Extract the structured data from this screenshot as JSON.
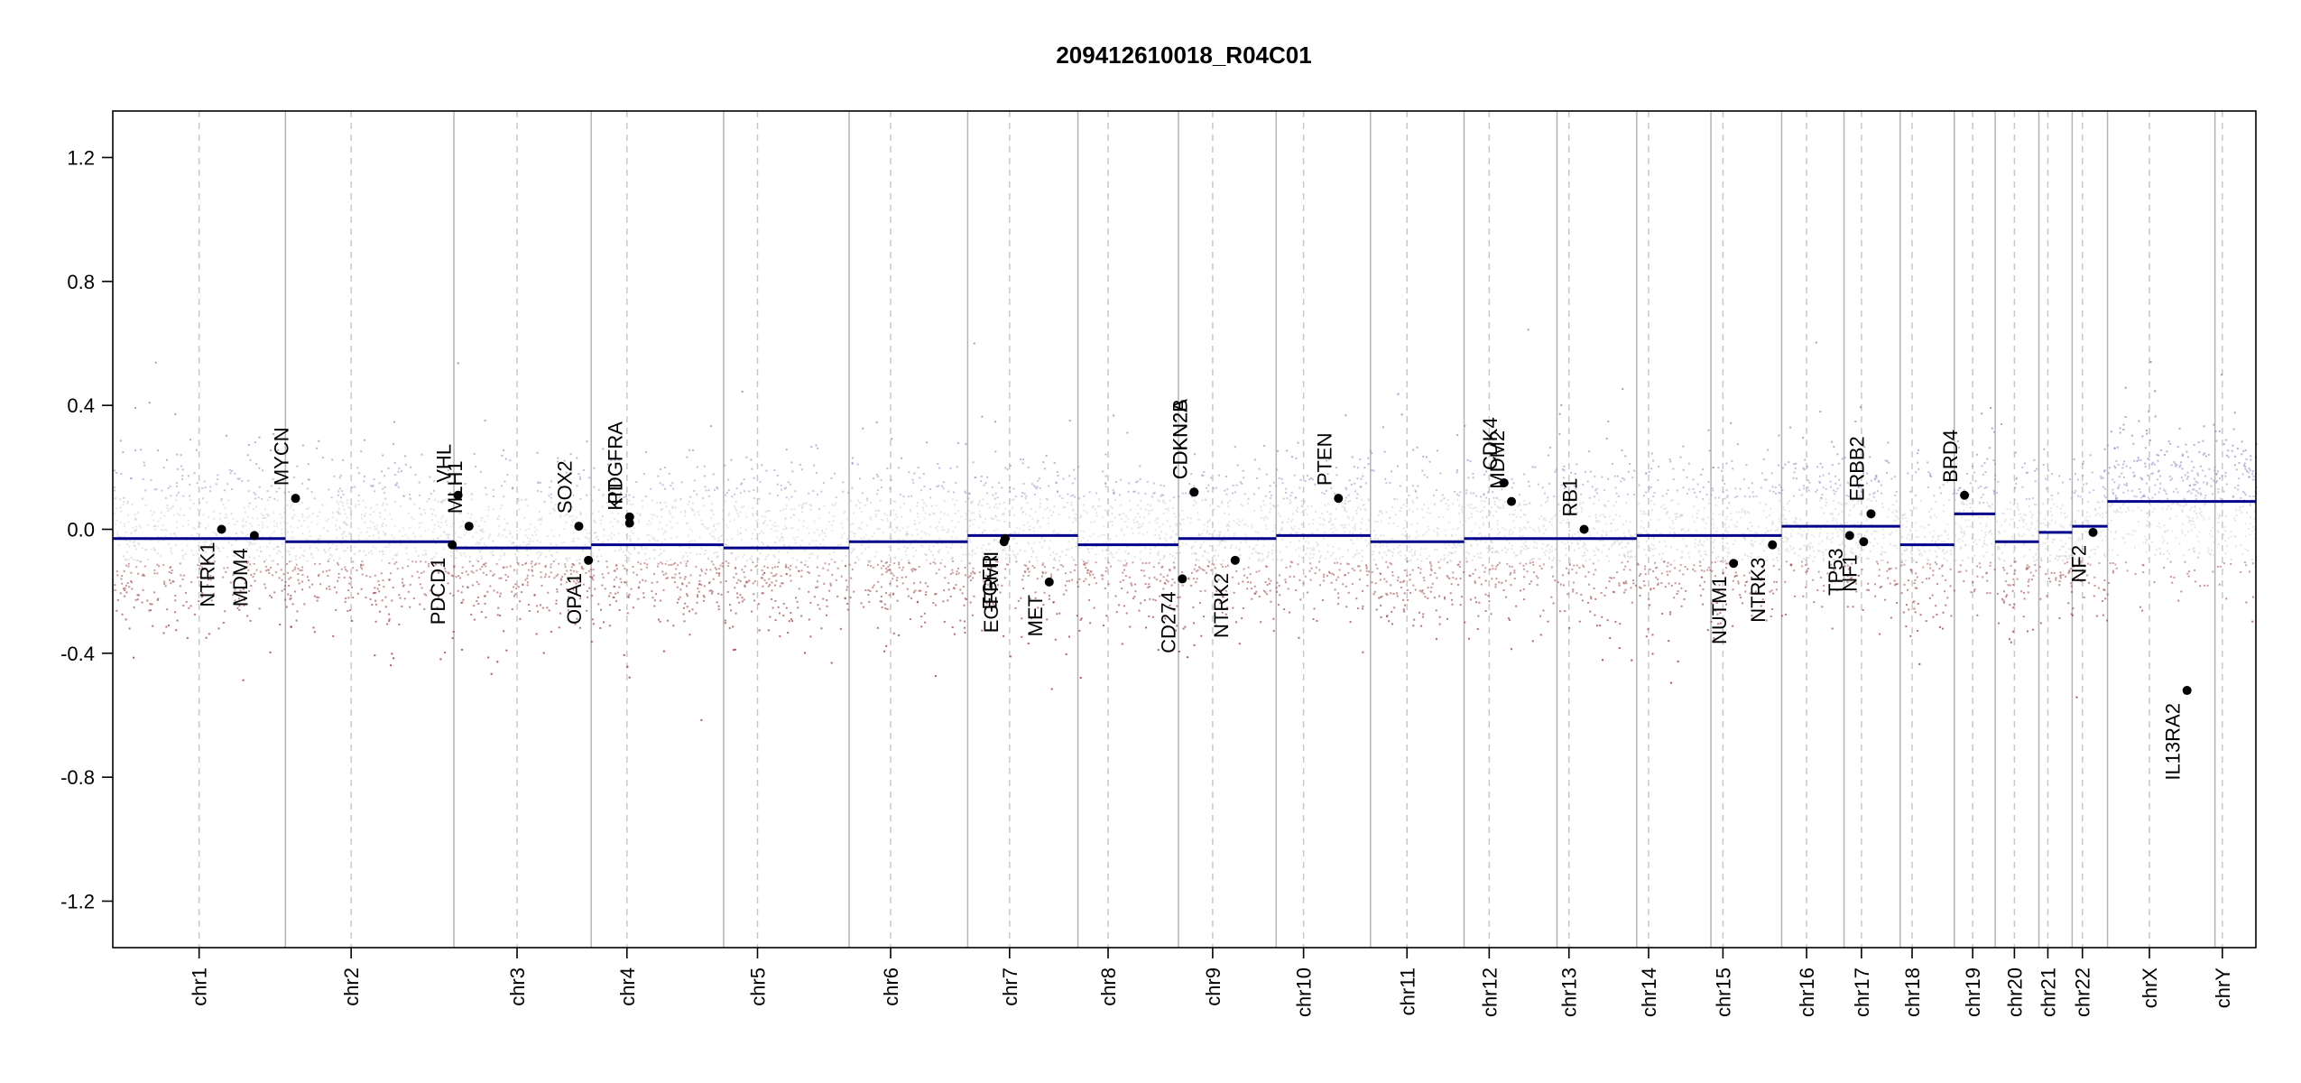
{
  "chart_data": {
    "type": "scatter",
    "title": "209412610018_R04C01",
    "xlabel": "",
    "ylabel": "",
    "ylim": [
      -1.35,
      1.35
    ],
    "y_ticks": [
      -1.2,
      -0.8,
      -0.4,
      0.0,
      0.4,
      0.8,
      1.2
    ],
    "y_tick_labels": [
      "-1.2",
      "-0.8",
      "-0.4",
      "0.0",
      "0.4",
      "0.8",
      "1.2"
    ],
    "grid": false,
    "colors": {
      "segment": "#00008b",
      "gain_points": "#8c8cc8",
      "loss_points": "#a03c3c",
      "neutral_points": "#c0c0c0",
      "chrom_boundary": "#b4b4b4",
      "centromere": "#c8c8c8",
      "gene_marker": "#000000"
    },
    "chromosomes": [
      {
        "name": "chr1",
        "length": 249,
        "centromere": 0.5,
        "segment": -0.03,
        "spread": 0.13
      },
      {
        "name": "chr2",
        "length": 243,
        "centromere": 0.39,
        "segment": -0.04,
        "spread": 0.13
      },
      {
        "name": "chr3",
        "length": 198,
        "centromere": 0.46,
        "segment": -0.06,
        "spread": 0.13
      },
      {
        "name": "chr4",
        "length": 191,
        "centromere": 0.27,
        "segment": -0.05,
        "spread": 0.13
      },
      {
        "name": "chr5",
        "length": 181,
        "centromere": 0.27,
        "segment": -0.06,
        "spread": 0.13
      },
      {
        "name": "chr6",
        "length": 171,
        "centromere": 0.35,
        "segment": -0.04,
        "spread": 0.13
      },
      {
        "name": "chr7",
        "length": 159,
        "centromere": 0.38,
        "segment": -0.02,
        "spread": 0.13
      },
      {
        "name": "chr8",
        "length": 145,
        "centromere": 0.3,
        "segment": -0.05,
        "spread": 0.13
      },
      {
        "name": "chr9",
        "length": 141,
        "centromere": 0.35,
        "segment": -0.03,
        "spread": 0.13
      },
      {
        "name": "chr10",
        "length": 136,
        "centromere": 0.29,
        "segment": -0.02,
        "spread": 0.13
      },
      {
        "name": "chr11",
        "length": 135,
        "centromere": 0.39,
        "segment": -0.04,
        "spread": 0.13
      },
      {
        "name": "chr12",
        "length": 134,
        "centromere": 0.27,
        "segment": -0.03,
        "spread": 0.13
      },
      {
        "name": "chr13",
        "length": 115,
        "centromere": 0.15,
        "segment": -0.03,
        "spread": 0.13
      },
      {
        "name": "chr14",
        "length": 107,
        "centromere": 0.16,
        "segment": -0.02,
        "spread": 0.13
      },
      {
        "name": "chr15",
        "length": 102,
        "centromere": 0.17,
        "segment": -0.02,
        "spread": 0.13
      },
      {
        "name": "chr16",
        "length": 90,
        "centromere": 0.4,
        "segment": 0.01,
        "spread": 0.13
      },
      {
        "name": "chr17",
        "length": 81,
        "centromere": 0.31,
        "segment": 0.01,
        "spread": 0.13
      },
      {
        "name": "chr18",
        "length": 78,
        "centromere": 0.22,
        "segment": -0.05,
        "spread": 0.13
      },
      {
        "name": "chr19",
        "length": 59,
        "centromere": 0.45,
        "segment": 0.05,
        "spread": 0.13
      },
      {
        "name": "chr20",
        "length": 63,
        "centromere": 0.44,
        "segment": -0.04,
        "spread": 0.13
      },
      {
        "name": "chr21",
        "length": 48,
        "centromere": 0.27,
        "segment": -0.01,
        "spread": 0.13
      },
      {
        "name": "chr22",
        "length": 51,
        "centromere": 0.29,
        "segment": 0.01,
        "spread": 0.13
      },
      {
        "name": "chrX",
        "length": 155,
        "centromere": 0.39,
        "segment": 0.09,
        "spread": 0.13
      },
      {
        "name": "chrY",
        "length": 59,
        "centromere": 0.18,
        "segment": 0.09,
        "spread": 0.13
      }
    ],
    "genes": [
      {
        "name": "NTRK1",
        "chrom": "chr1",
        "pos": 0.63,
        "value": 0.0,
        "label_side": "below"
      },
      {
        "name": "MDM4",
        "chrom": "chr1",
        "pos": 0.82,
        "value": -0.02,
        "label_side": "below"
      },
      {
        "name": "MYCN",
        "chrom": "chr2",
        "pos": 0.06,
        "value": 0.1,
        "label_side": "above"
      },
      {
        "name": "PDCD1",
        "chrom": "chr2",
        "pos": 0.99,
        "value": -0.05,
        "label_side": "below"
      },
      {
        "name": "VHL",
        "chrom": "chr3",
        "pos": 0.03,
        "value": 0.11,
        "label_side": "above"
      },
      {
        "name": "MLH1",
        "chrom": "chr3",
        "pos": 0.11,
        "value": 0.01,
        "label_side": "above"
      },
      {
        "name": "SOX2",
        "chrom": "chr3",
        "pos": 0.91,
        "value": 0.01,
        "label_side": "above"
      },
      {
        "name": "OPA1",
        "chrom": "chr3",
        "pos": 0.98,
        "value": -0.1,
        "label_side": "below"
      },
      {
        "name": "KIT",
        "chrom": "chr4",
        "pos": 0.29,
        "value": 0.02,
        "label_side": "above"
      },
      {
        "name": "PDGFRA",
        "chrom": "chr4",
        "pos": 0.29,
        "value": 0.04,
        "label_side": "above"
      },
      {
        "name": "EGFR",
        "chrom": "chr7",
        "pos": 0.33,
        "value": -0.04,
        "label_side": "below"
      },
      {
        "name": "EGFRvIII",
        "chrom": "chr7",
        "pos": 0.34,
        "value": -0.03,
        "label_side": "below"
      },
      {
        "name": "MET",
        "chrom": "chr7",
        "pos": 0.74,
        "value": -0.17,
        "label_side": "below"
      },
      {
        "name": "CD274",
        "chrom": "chr9",
        "pos": 0.04,
        "value": -0.16,
        "label_side": "below"
      },
      {
        "name": "CDKN2A",
        "chrom": "chr9",
        "pos": 0.16,
        "value": 0.12,
        "label_side": "above"
      },
      {
        "name": "CDKN2B",
        "chrom": "chr9",
        "pos": 0.16,
        "value": 0.12,
        "label_side": "above"
      },
      {
        "name": "NTRK2",
        "chrom": "chr9",
        "pos": 0.58,
        "value": -0.1,
        "label_side": "below"
      },
      {
        "name": "PTEN",
        "chrom": "chr10",
        "pos": 0.66,
        "value": 0.1,
        "label_side": "above"
      },
      {
        "name": "CDK4",
        "chrom": "chr12",
        "pos": 0.43,
        "value": 0.15,
        "label_side": "above"
      },
      {
        "name": "MDM2",
        "chrom": "chr12",
        "pos": 0.51,
        "value": 0.09,
        "label_side": "above"
      },
      {
        "name": "RB1",
        "chrom": "chr13",
        "pos": 0.34,
        "value": 0.0,
        "label_side": "above"
      },
      {
        "name": "NUTM1",
        "chrom": "chr15",
        "pos": 0.32,
        "value": -0.11,
        "label_side": "below"
      },
      {
        "name": "NTRK3",
        "chrom": "chr15",
        "pos": 0.87,
        "value": -0.05,
        "label_side": "below"
      },
      {
        "name": "TP53",
        "chrom": "chr17",
        "pos": 0.1,
        "value": -0.02,
        "label_side": "below"
      },
      {
        "name": "NF1",
        "chrom": "chr17",
        "pos": 0.35,
        "value": -0.04,
        "label_side": "below"
      },
      {
        "name": "ERBB2",
        "chrom": "chr17",
        "pos": 0.48,
        "value": 0.05,
        "label_side": "above"
      },
      {
        "name": "BRD4",
        "chrom": "chr19",
        "pos": 0.25,
        "value": 0.11,
        "label_side": "above"
      },
      {
        "name": "NF2",
        "chrom": "chr22",
        "pos": 0.59,
        "value": -0.01,
        "label_side": "below"
      },
      {
        "name": "IL13RA2",
        "chrom": "chrX",
        "pos": 0.74,
        "value": -0.52,
        "label_side": "below"
      }
    ]
  }
}
